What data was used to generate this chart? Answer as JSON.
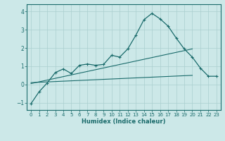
{
  "xlabel": "Humidex (Indice chaleur)",
  "xlim": [
    -0.5,
    23.5
  ],
  "ylim": [
    -1.4,
    4.4
  ],
  "xticks": [
    0,
    1,
    2,
    3,
    4,
    5,
    6,
    7,
    8,
    9,
    10,
    11,
    12,
    13,
    14,
    15,
    16,
    17,
    18,
    19,
    20,
    21,
    22,
    23
  ],
  "yticks": [
    -1,
    0,
    1,
    2,
    3,
    4
  ],
  "bg_color": "#cce8e8",
  "line_color": "#1a6b6b",
  "grid_color": "#aacfcf",
  "main_x": [
    0,
    1,
    2,
    3,
    4,
    5,
    6,
    7,
    8,
    9,
    10,
    11,
    12,
    13,
    14,
    15,
    16,
    17,
    18,
    19,
    20,
    21,
    22,
    23
  ],
  "main_y": [
    -1.05,
    -0.4,
    0.08,
    0.65,
    0.85,
    0.6,
    1.05,
    1.12,
    1.05,
    1.1,
    1.6,
    1.5,
    1.95,
    2.7,
    3.55,
    3.9,
    3.6,
    3.2,
    2.55,
    1.95,
    1.5,
    0.9,
    0.45,
    0.45
  ],
  "trend1_x": [
    0,
    20
  ],
  "trend1_y": [
    0.05,
    1.95
  ],
  "trend2_x": [
    0,
    20
  ],
  "trend2_y": [
    0.1,
    0.5
  ],
  "figsize": [
    3.2,
    2.0
  ],
  "dpi": 100
}
